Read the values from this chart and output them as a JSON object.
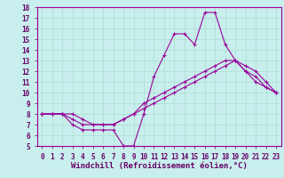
{
  "xlabel": "Windchill (Refroidissement éolien,°C)",
  "background_color": "#c8eeed",
  "line_color": "#990099",
  "grid_color": "#aaddcc",
  "xlim": [
    -0.5,
    23.5
  ],
  "ylim": [
    5,
    18
  ],
  "xticks": [
    0,
    1,
    2,
    3,
    4,
    5,
    6,
    7,
    8,
    9,
    10,
    11,
    12,
    13,
    14,
    15,
    16,
    17,
    18,
    19,
    20,
    21,
    22,
    23
  ],
  "yticks": [
    5,
    6,
    7,
    8,
    9,
    10,
    11,
    12,
    13,
    14,
    15,
    16,
    17,
    18
  ],
  "line1_x": [
    0,
    1,
    2,
    3,
    4,
    5,
    6,
    7,
    8,
    9,
    10,
    11,
    12,
    13,
    14,
    15,
    16,
    17,
    18,
    19,
    20,
    21,
    22,
    23
  ],
  "line1_y": [
    8,
    8,
    8,
    7,
    6.5,
    6.5,
    6.5,
    6.5,
    5,
    5,
    8,
    11.5,
    13.5,
    15.5,
    15.5,
    14.5,
    17.5,
    17.5,
    14.5,
    13,
    12,
    11.5,
    10.5,
    10
  ],
  "line2_x": [
    0,
    1,
    2,
    3,
    4,
    5,
    6,
    7,
    8,
    9,
    10,
    11,
    12,
    13,
    14,
    15,
    16,
    17,
    18,
    19,
    20,
    21,
    22,
    23
  ],
  "line2_y": [
    8,
    8,
    8,
    8,
    7.5,
    7,
    7,
    7,
    7.5,
    8,
    9,
    9.5,
    10,
    10.5,
    11,
    11.5,
    12,
    12.5,
    13,
    13,
    12.5,
    12,
    11,
    10
  ],
  "line3_x": [
    0,
    1,
    2,
    3,
    4,
    5,
    6,
    7,
    8,
    9,
    10,
    11,
    12,
    13,
    14,
    15,
    16,
    17,
    18,
    19,
    20,
    21,
    22,
    23
  ],
  "line3_y": [
    8,
    8,
    8,
    7.5,
    7,
    7,
    7,
    7,
    7.5,
    8,
    8.5,
    9,
    9.5,
    10,
    10.5,
    11,
    11.5,
    12,
    12.5,
    13,
    12,
    11,
    10.5,
    10
  ],
  "marker": "+",
  "markersize": 3.5,
  "linewidth": 0.8,
  "tick_fontsize": 5.5,
  "xlabel_fontsize": 6.5,
  "tick_color": "#660066",
  "xlabel_color": "#660066"
}
